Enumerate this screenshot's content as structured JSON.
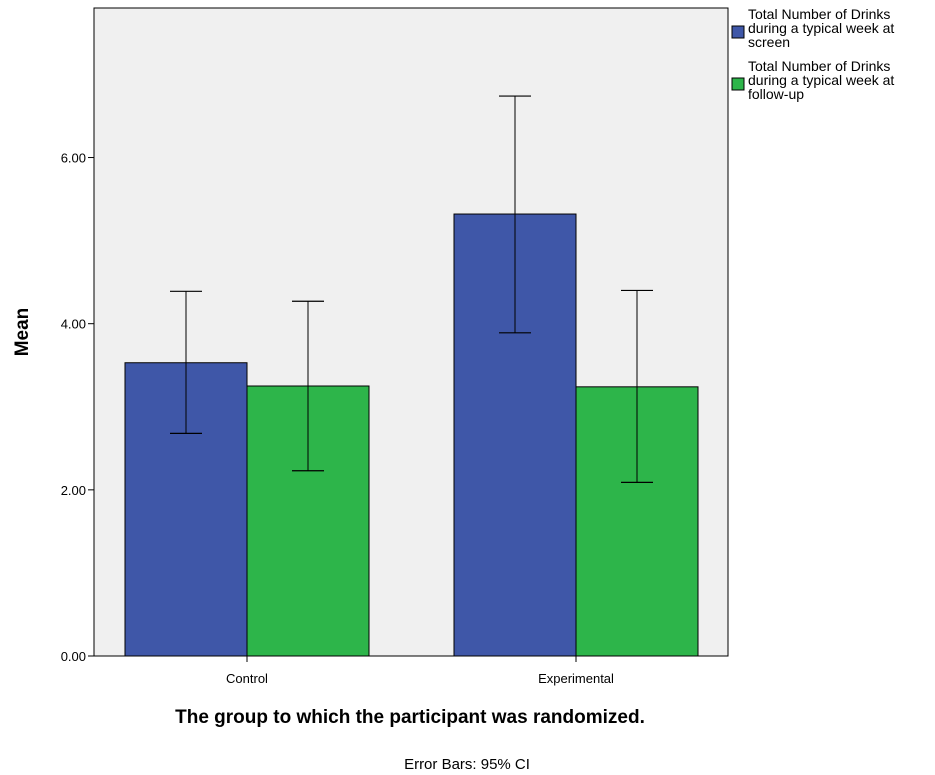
{
  "chart_data": {
    "type": "bar",
    "categories": [
      "Control",
      "Experimental"
    ],
    "series": [
      {
        "name": "Total Number of Drinks during a typical week at screen",
        "legend_lines": [
          "Total Number of Drinks",
          "during a typical week at",
          "screen"
        ],
        "values": [
          3.53,
          5.32
        ],
        "ci_low": [
          2.68,
          3.89
        ],
        "ci_high": [
          4.39,
          6.74
        ],
        "color": "#3f57a8"
      },
      {
        "name": "Total Number of Drinks during a typical week at follow-up",
        "legend_lines": [
          "Total Number of Drinks",
          "during a typical week at",
          "follow-up"
        ],
        "values": [
          3.25,
          3.24
        ],
        "ci_low": [
          2.23,
          2.09
        ],
        "ci_high": [
          4.27,
          4.4
        ],
        "color": "#2db54a"
      }
    ],
    "yticks": [
      "0.00",
      "2.00",
      "4.00",
      "6.00"
    ],
    "ylim": [
      0,
      7.8
    ],
    "xlabel": "The group to which the participant was randomized.",
    "ylabel": "Mean",
    "footnote": "Error Bars: 95% CI",
    "plot_background": "#f0f0f0",
    "legend_position": "top-right, outside plot",
    "grid": false
  }
}
